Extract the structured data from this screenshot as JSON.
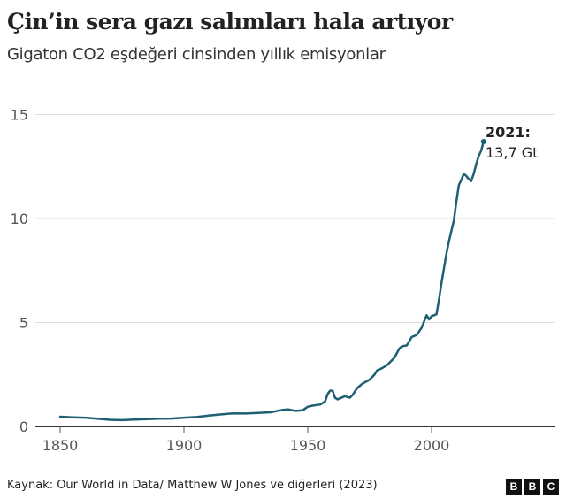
{
  "header": {
    "title": "Çin’in sera gazı salımları hala artıyor",
    "subtitle": "Gigaton CO2 eşdeğeri cinsinden yıllık emisyonlar"
  },
  "footer": {
    "source": "Kaynak: Our World in Data/ Matthew W Jones ve diğerleri (2023)",
    "logo_letters": [
      "B",
      "B",
      "C"
    ]
  },
  "colors": {
    "line": "#1f5f73",
    "grid": "#dddddd",
    "axis": "#333333"
  },
  "annotation": {
    "year": "2021:",
    "value": "13,7 Gt"
  },
  "chart_data": {
    "type": "line",
    "title": "Çin’in sera gazı salımları hala artıyor",
    "subtitle": "Gigaton CO2 eşdeğeri cinsinden yıllık emisyonlar",
    "xlabel": "",
    "ylabel": "Gigaton CO2 eşdeğeri",
    "xlim": [
      1850,
      2050
    ],
    "ylim": [
      0,
      15
    ],
    "yticks": [
      0,
      5,
      10,
      15
    ],
    "ytick_labels": [
      "0",
      "5",
      "10",
      "15"
    ],
    "xticks": [
      1850,
      1900,
      1950,
      2000
    ],
    "xtick_labels": [
      "1850",
      "1900",
      "1950",
      "2000"
    ],
    "grid": "horizontal",
    "legend": null,
    "series": [
      {
        "name": "Çin",
        "x": [
          1850,
          1855,
          1860,
          1865,
          1870,
          1875,
          1880,
          1885,
          1890,
          1895,
          1900,
          1905,
          1910,
          1915,
          1920,
          1925,
          1930,
          1935,
          1940,
          1942,
          1945,
          1948,
          1950,
          1952,
          1955,
          1957,
          1958,
          1959,
          1960,
          1961,
          1962,
          1963,
          1965,
          1967,
          1968,
          1970,
          1972,
          1975,
          1977,
          1978,
          1980,
          1982,
          1985,
          1987,
          1988,
          1990,
          1992,
          1994,
          1996,
          1997,
          1998,
          1999,
          2000,
          2001,
          2002,
          2003,
          2004,
          2005,
          2006,
          2007,
          2008,
          2009,
          2010,
          2011,
          2012,
          2013,
          2014,
          2015,
          2016,
          2017,
          2018,
          2019,
          2020,
          2021
        ],
        "values": [
          0.47,
          0.44,
          0.42,
          0.37,
          0.32,
          0.3,
          0.33,
          0.35,
          0.37,
          0.38,
          0.42,
          0.45,
          0.52,
          0.58,
          0.63,
          0.62,
          0.65,
          0.68,
          0.8,
          0.82,
          0.75,
          0.78,
          0.95,
          1.0,
          1.05,
          1.2,
          1.55,
          1.72,
          1.72,
          1.38,
          1.3,
          1.35,
          1.45,
          1.38,
          1.5,
          1.85,
          2.05,
          2.25,
          2.5,
          2.7,
          2.8,
          2.95,
          3.3,
          3.75,
          3.85,
          3.9,
          4.3,
          4.4,
          4.75,
          5.05,
          5.35,
          5.15,
          5.3,
          5.35,
          5.4,
          6.1,
          6.9,
          7.6,
          8.3,
          8.9,
          9.4,
          9.9,
          10.8,
          11.6,
          11.85,
          12.15,
          12.05,
          11.9,
          11.8,
          12.15,
          12.6,
          13.0,
          13.25,
          13.7
        ]
      }
    ],
    "annotations": [
      {
        "x": 2021,
        "y": 13.7,
        "text": "2021: 13,7 Gt"
      }
    ]
  }
}
